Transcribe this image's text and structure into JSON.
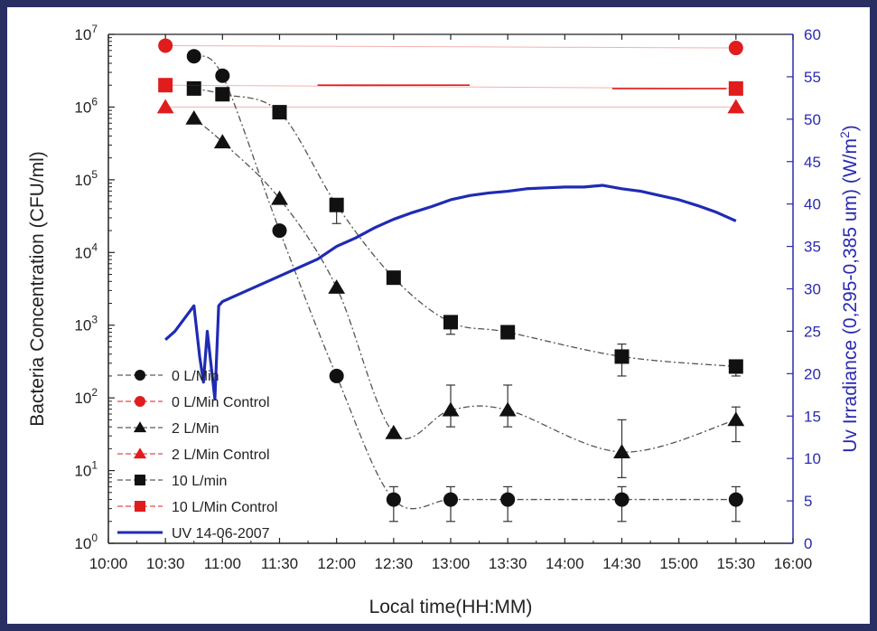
{
  "colors": {
    "background": "#2a2f63",
    "black": "#111111",
    "control": "#e11c1c",
    "uv": "#1f2bb4",
    "right_axis": "#2a2ab0"
  },
  "chart_data": {
    "type": "line",
    "xlabel": "Local time(HH:MM)",
    "ylabel": "Bacteria Concentration (CFU/ml)",
    "y2label": "Uv Irradiance (0,295-0,385 um) (W/m",
    "y2label_sup": "2",
    "y2label_end": ")",
    "x_ticks": [
      "10:00",
      "10:30",
      "11:00",
      "11:30",
      "12:00",
      "12:30",
      "13:00",
      "13:30",
      "14:00",
      "14:30",
      "15:00",
      "15:30",
      "16:00"
    ],
    "xlim": [
      "10:00",
      "16:00"
    ],
    "y_scale": "log",
    "ylim": [
      1,
      10000000
    ],
    "y_tick_exponents": [
      "0",
      "1",
      "2",
      "3",
      "4",
      "5",
      "6",
      "7"
    ],
    "y2lim": [
      0,
      60
    ],
    "y2_ticks": [
      "0",
      "5",
      "10",
      "15",
      "20",
      "25",
      "30",
      "35",
      "40",
      "45",
      "50",
      "55",
      "60"
    ],
    "legend_position": "bottom-left",
    "series": [
      {
        "name": "0 L/Min",
        "marker": "circle",
        "color": "#111111",
        "points": [
          {
            "x": "10:45",
            "y": 5000000
          },
          {
            "x": "11:00",
            "y": 2700000
          },
          {
            "x": "11:30",
            "y": 20000
          },
          {
            "x": "12:00",
            "y": 200
          },
          {
            "x": "12:30",
            "y": 4
          },
          {
            "x": "13:00",
            "y": 4
          },
          {
            "x": "13:30",
            "y": 4
          },
          {
            "x": "14:30",
            "y": 4
          },
          {
            "x": "15:30",
            "y": 4
          }
        ]
      },
      {
        "name": "0 L/Min Control",
        "marker": "circle",
        "color": "#e11c1c",
        "points": [
          {
            "x": "10:30",
            "y": 7000000
          },
          {
            "x": "15:30",
            "y": 6500000
          }
        ]
      },
      {
        "name": "2 L/Min",
        "marker": "triangle",
        "color": "#111111",
        "points": [
          {
            "x": "10:45",
            "y": 700000
          },
          {
            "x": "11:00",
            "y": 330000
          },
          {
            "x": "11:30",
            "y": 55000
          },
          {
            "x": "12:00",
            "y": 3300
          },
          {
            "x": "12:30",
            "y": 33
          },
          {
            "x": "13:00",
            "y": 68
          },
          {
            "x": "13:30",
            "y": 68
          },
          {
            "x": "14:30",
            "y": 18
          },
          {
            "x": "15:30",
            "y": 50
          }
        ]
      },
      {
        "name": "2 L/Min Control",
        "marker": "triangle",
        "color": "#e11c1c",
        "points": [
          {
            "x": "10:30",
            "y": 1000000
          },
          {
            "x": "15:30",
            "y": 1000000
          }
        ]
      },
      {
        "name": "10 L/min",
        "marker": "square",
        "color": "#111111",
        "points": [
          {
            "x": "10:45",
            "y": 1800000
          },
          {
            "x": "11:00",
            "y": 1500000
          },
          {
            "x": "11:30",
            "y": 850000
          },
          {
            "x": "12:00",
            "y": 45000
          },
          {
            "x": "12:30",
            "y": 4500
          },
          {
            "x": "13:00",
            "y": 1100
          },
          {
            "x": "13:30",
            "y": 800
          },
          {
            "x": "14:30",
            "y": 370
          },
          {
            "x": "15:30",
            "y": 270
          }
        ]
      },
      {
        "name": "10 L/Min Control",
        "marker": "square",
        "color": "#e11c1c",
        "points": [
          {
            "x": "10:30",
            "y": 2000000
          },
          {
            "x": "15:30",
            "y": 1800000
          }
        ]
      },
      {
        "name": "UV 14-06-2007",
        "marker": "none",
        "color": "#1f2bb4",
        "axis": "right",
        "points": [
          {
            "x": "10:30",
            "y": 24
          },
          {
            "x": "10:35",
            "y": 25
          },
          {
            "x": "10:40",
            "y": 26.5
          },
          {
            "x": "10:45",
            "y": 28
          },
          {
            "x": "10:48",
            "y": 22
          },
          {
            "x": "10:50",
            "y": 19
          },
          {
            "x": "10:52",
            "y": 25
          },
          {
            "x": "10:54",
            "y": 21
          },
          {
            "x": "10:56",
            "y": 17
          },
          {
            "x": "10:58",
            "y": 28
          },
          {
            "x": "11:00",
            "y": 28.5
          },
          {
            "x": "11:10",
            "y": 29.5
          },
          {
            "x": "11:20",
            "y": 30.5
          },
          {
            "x": "11:30",
            "y": 31.5
          },
          {
            "x": "11:40",
            "y": 32.5
          },
          {
            "x": "11:50",
            "y": 33.5
          },
          {
            "x": "12:00",
            "y": 35
          },
          {
            "x": "12:10",
            "y": 36
          },
          {
            "x": "12:20",
            "y": 37.2
          },
          {
            "x": "12:30",
            "y": 38.2
          },
          {
            "x": "12:40",
            "y": 39
          },
          {
            "x": "12:50",
            "y": 39.7
          },
          {
            "x": "13:00",
            "y": 40.5
          },
          {
            "x": "13:10",
            "y": 41
          },
          {
            "x": "13:20",
            "y": 41.3
          },
          {
            "x": "13:30",
            "y": 41.5
          },
          {
            "x": "13:40",
            "y": 41.8
          },
          {
            "x": "13:50",
            "y": 41.9
          },
          {
            "x": "14:00",
            "y": 42
          },
          {
            "x": "14:10",
            "y": 42
          },
          {
            "x": "14:20",
            "y": 42.2
          },
          {
            "x": "14:30",
            "y": 41.8
          },
          {
            "x": "14:40",
            "y": 41.5
          },
          {
            "x": "14:50",
            "y": 41
          },
          {
            "x": "15:00",
            "y": 40.5
          },
          {
            "x": "15:10",
            "y": 39.8
          },
          {
            "x": "15:20",
            "y": 39
          },
          {
            "x": "15:30",
            "y": 38
          }
        ]
      }
    ],
    "error_bars": [
      {
        "series": "0 L/Min",
        "x": "12:30",
        "low": 2,
        "high": 6
      },
      {
        "series": "0 L/Min",
        "x": "13:00",
        "low": 2,
        "high": 6
      },
      {
        "series": "0 L/Min",
        "x": "13:30",
        "low": 2,
        "high": 6
      },
      {
        "series": "0 L/Min",
        "x": "14:30",
        "low": 2,
        "high": 6
      },
      {
        "series": "0 L/Min",
        "x": "15:30",
        "low": 2,
        "high": 6
      },
      {
        "series": "2 L/Min",
        "x": "13:00",
        "low": 40,
        "high": 150
      },
      {
        "series": "2 L/Min",
        "x": "13:30",
        "low": 40,
        "high": 150
      },
      {
        "series": "2 L/Min",
        "x": "14:30",
        "low": 8,
        "high": 50
      },
      {
        "series": "2 L/Min",
        "x": "15:30",
        "low": 25,
        "high": 75
      },
      {
        "series": "10 L/min",
        "x": "12:00",
        "low": 25000,
        "high": 50000
      },
      {
        "series": "10 L/min",
        "x": "13:00",
        "low": 750,
        "high": 1200
      },
      {
        "series": "10 L/min",
        "x": "14:30",
        "low": 200,
        "high": 550
      },
      {
        "series": "10 L/min",
        "x": "15:30",
        "low": 200,
        "high": 300
      }
    ]
  }
}
